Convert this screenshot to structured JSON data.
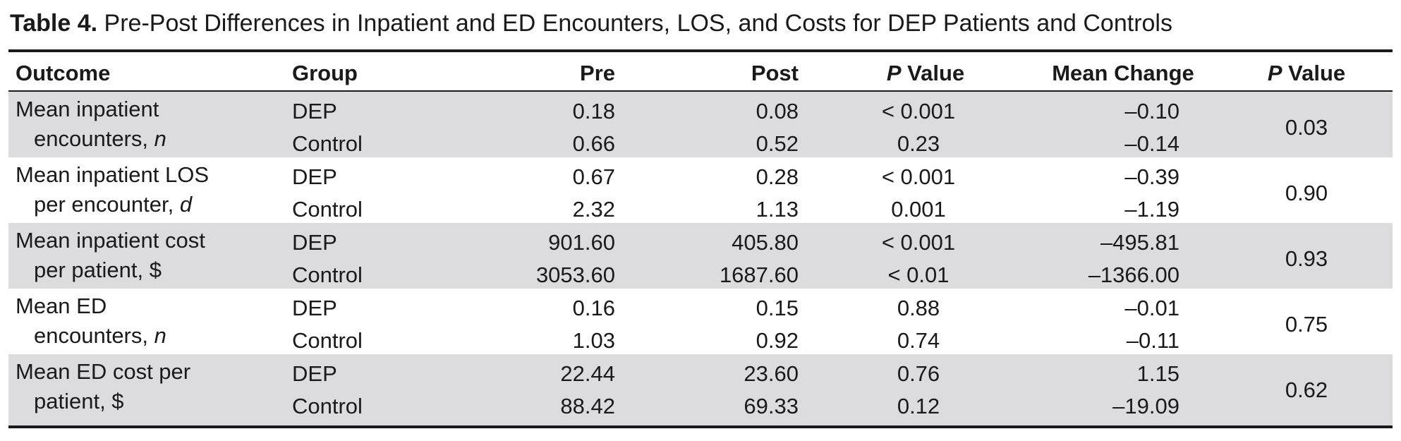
{
  "caption": {
    "label": "Table 4.",
    "text": "Pre-Post Differences in Inpatient and ED Encounters, LOS, and Costs for DEP Patients and Controls"
  },
  "headers": {
    "outcome": "Outcome",
    "group": "Group",
    "pre": "Pre",
    "post": "Post",
    "p_value_italic": "P",
    "p_value_rest": " Value",
    "mean_change": "Mean Change",
    "p_value2_italic": "P",
    "p_value2_rest": " Value"
  },
  "rows": [
    {
      "outcome_line1": "Mean inpatient",
      "outcome_line2": "encounters, ",
      "outcome_unit": "n",
      "dep": {
        "group": "DEP",
        "pre": "0.18",
        "post": "0.08",
        "p": "< 0.001",
        "change": "–0.10"
      },
      "control": {
        "group": "Control",
        "pre": "0.66",
        "post": "0.52",
        "p": "0.23",
        "change": "–0.14"
      },
      "p_between": "0.03"
    },
    {
      "outcome_line1": "Mean inpatient LOS",
      "outcome_line2": "per encounter, ",
      "outcome_unit": "d",
      "dep": {
        "group": "DEP",
        "pre": "0.67",
        "post": "0.28",
        "p": "< 0.001",
        "change": "–0.39"
      },
      "control": {
        "group": "Control",
        "pre": "2.32",
        "post": "1.13",
        "p": "0.001",
        "change": "–1.19"
      },
      "p_between": "0.90"
    },
    {
      "outcome_line1": "Mean inpatient cost",
      "outcome_line2": "per patient, $",
      "outcome_unit": "",
      "dep": {
        "group": "DEP",
        "pre": "901.60",
        "post": "405.80",
        "p": "< 0.001",
        "change": "–495.81"
      },
      "control": {
        "group": "Control",
        "pre": "3053.60",
        "post": "1687.60",
        "p": "< 0.01",
        "change": "–1366.00"
      },
      "p_between": "0.93"
    },
    {
      "outcome_line1": "Mean ED",
      "outcome_line2": "encounters, ",
      "outcome_unit": "n",
      "dep": {
        "group": "DEP",
        "pre": "0.16",
        "post": "0.15",
        "p": "0.88",
        "change": "–0.01"
      },
      "control": {
        "group": "Control",
        "pre": "1.03",
        "post": "0.92",
        "p": "0.74",
        "change": "–0.11"
      },
      "p_between": "0.75"
    },
    {
      "outcome_line1": "Mean ED cost per",
      "outcome_line2": "patient, $",
      "outcome_unit": "",
      "dep": {
        "group": "DEP",
        "pre": "22.44",
        "post": "23.60",
        "p": "0.76",
        "change": "1.15"
      },
      "control": {
        "group": "Control",
        "pre": "88.42",
        "post": "69.33",
        "p": "0.12",
        "change": "–19.09"
      },
      "p_between": "0.62"
    }
  ],
  "colors": {
    "shade": "#dcdcdf",
    "text": "#1a1a1a"
  }
}
